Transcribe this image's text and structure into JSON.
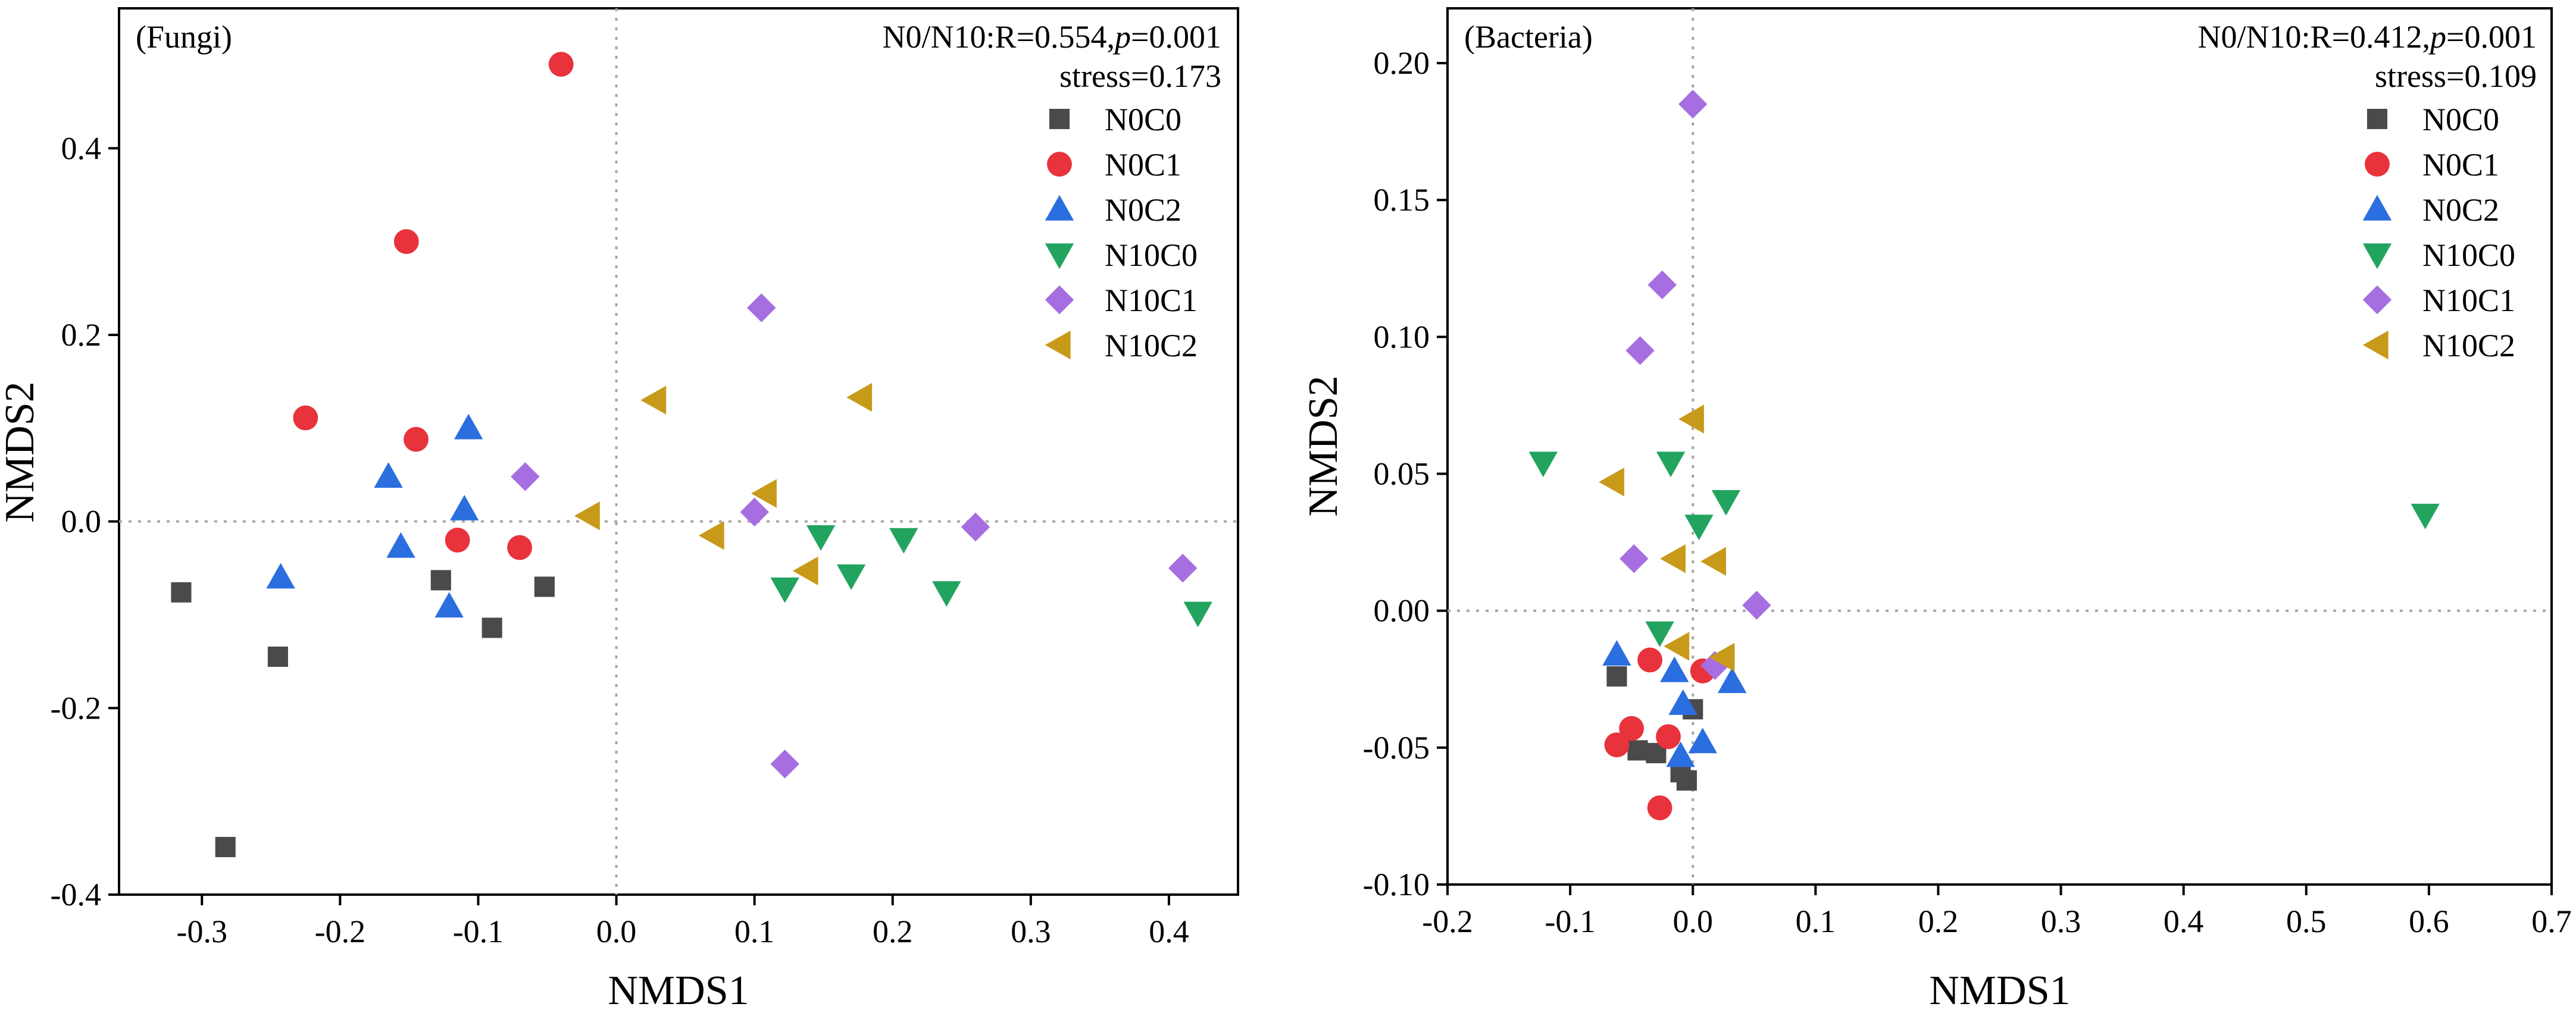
{
  "legend": [
    "N0C0",
    "N0C1",
    "N0C2",
    "N10C0",
    "N10C1",
    "N10C2"
  ],
  "series_style": {
    "N0C0": {
      "marker": "square",
      "color": "#4a4a4a"
    },
    "N0C1": {
      "marker": "circle",
      "color": "#e8323c"
    },
    "N0C2": {
      "marker": "triangle-up",
      "color": "#2b6ee0"
    },
    "N10C0": {
      "marker": "triangle-down",
      "color": "#22a45f"
    },
    "N10C1": {
      "marker": "diamond",
      "color": "#a66ee0"
    },
    "N10C2": {
      "marker": "triangle-left",
      "color": "#c89a1a"
    }
  },
  "chart_data": [
    {
      "type": "scatter",
      "panel_label": "(Fungi)",
      "stat_prefix": "N0/N10:R=0.554,",
      "stat_p_symbol": "p",
      "stat_p_value": "=0.001",
      "stress": "stress=0.173",
      "xlabel": "NMDS1",
      "ylabel": "NMDS2",
      "xlim": [
        -0.36,
        0.45
      ],
      "ylim": [
        -0.4,
        0.55
      ],
      "xticks": [
        -0.3,
        -0.2,
        -0.1,
        0.0,
        0.1,
        0.2,
        0.3,
        0.4
      ],
      "xtick_labels": [
        "-0.3",
        "-0.2",
        "-0.1",
        "0.0",
        "0.1",
        "0.2",
        "0.3",
        "0.4"
      ],
      "yticks": [
        -0.4,
        -0.2,
        0.0,
        0.2,
        0.4
      ],
      "ytick_labels": [
        "-0.4",
        "-0.2",
        "0.0",
        "0.2",
        "0.4"
      ],
      "series": [
        {
          "name": "N0C0",
          "points": [
            [
              -0.315,
              -0.076
            ],
            [
              -0.245,
              -0.145
            ],
            [
              -0.283,
              -0.349
            ],
            [
              -0.127,
              -0.063
            ],
            [
              -0.09,
              -0.114
            ],
            [
              -0.052,
              -0.07
            ]
          ]
        },
        {
          "name": "N0C1",
          "points": [
            [
              -0.04,
              0.49
            ],
            [
              -0.152,
              0.3
            ],
            [
              -0.225,
              0.111
            ],
            [
              -0.145,
              0.088
            ],
            [
              -0.115,
              -0.02
            ],
            [
              -0.07,
              -0.028
            ]
          ]
        },
        {
          "name": "N0C2",
          "points": [
            [
              -0.243,
              -0.06
            ],
            [
              -0.165,
              0.048
            ],
            [
              -0.156,
              -0.027
            ],
            [
              -0.107,
              0.1
            ],
            [
              -0.11,
              0.013
            ],
            [
              -0.121,
              -0.091
            ]
          ]
        },
        {
          "name": "N10C0",
          "points": [
            [
              0.148,
              -0.016
            ],
            [
              0.122,
              -0.072
            ],
            [
              0.17,
              -0.058
            ],
            [
              0.208,
              -0.019
            ],
            [
              0.239,
              -0.076
            ],
            [
              0.421,
              -0.098
            ]
          ]
        },
        {
          "name": "N10C1",
          "points": [
            [
              0.105,
              0.229
            ],
            [
              -0.066,
              0.048
            ],
            [
              0.1,
              0.01
            ],
            [
              0.26,
              -0.006
            ],
            [
              0.41,
              -0.05
            ],
            [
              0.122,
              -0.26
            ]
          ]
        },
        {
          "name": "N10C2",
          "points": [
            [
              0.028,
              0.13
            ],
            [
              0.177,
              0.133
            ],
            [
              -0.02,
              0.006
            ],
            [
              0.108,
              0.03
            ],
            [
              0.07,
              -0.015
            ],
            [
              0.138,
              -0.053
            ]
          ]
        }
      ]
    },
    {
      "type": "scatter",
      "panel_label": "(Bacteria)",
      "stat_prefix": "N0/N10:R=0.412,",
      "stat_p_symbol": "p",
      "stat_p_value": "=0.001",
      "stress": "stress=0.109",
      "xlabel": "NMDS1",
      "ylabel": "NMDS2",
      "xlim": [
        -0.2,
        0.7
      ],
      "ylim": [
        -0.1,
        0.22
      ],
      "xticks": [
        -0.2,
        -0.1,
        0.0,
        0.1,
        0.2,
        0.3,
        0.4,
        0.5,
        0.6,
        0.7
      ],
      "xtick_labels": [
        "-0.2",
        "-0.1",
        "0.0",
        "0.1",
        "0.2",
        "0.3",
        "0.4",
        "0.5",
        "0.6",
        "0.7"
      ],
      "yticks": [
        -0.1,
        -0.05,
        0.0,
        0.05,
        0.1,
        0.15,
        0.2
      ],
      "ytick_labels": [
        "-0.10",
        "-0.05",
        "0.00",
        "0.05",
        "0.10",
        "0.15",
        "0.20"
      ],
      "series": [
        {
          "name": "N0C0",
          "points": [
            [
              -0.062,
              -0.024
            ],
            [
              -0.045,
              -0.051
            ],
            [
              -0.03,
              -0.052
            ],
            [
              -0.01,
              -0.059
            ],
            [
              -0.005,
              -0.062
            ],
            [
              0.0,
              -0.036
            ]
          ]
        },
        {
          "name": "N0C1",
          "points": [
            [
              -0.035,
              -0.018
            ],
            [
              0.008,
              -0.022
            ],
            [
              -0.05,
              -0.043
            ],
            [
              -0.02,
              -0.046
            ],
            [
              -0.062,
              -0.049
            ],
            [
              -0.027,
              -0.072
            ]
          ]
        },
        {
          "name": "N0C2",
          "points": [
            [
              -0.062,
              -0.016
            ],
            [
              -0.015,
              -0.022
            ],
            [
              -0.008,
              -0.034
            ],
            [
              0.032,
              -0.026
            ],
            [
              0.008,
              -0.048
            ],
            [
              -0.01,
              -0.053
            ]
          ]
        },
        {
          "name": "N10C0",
          "points": [
            [
              -0.122,
              0.054
            ],
            [
              -0.018,
              0.054
            ],
            [
              0.027,
              0.04
            ],
            [
              0.005,
              0.031
            ],
            [
              -0.027,
              -0.008
            ],
            [
              0.597,
              0.035
            ]
          ]
        },
        {
          "name": "N10C1",
          "points": [
            [
              0.0,
              0.185
            ],
            [
              -0.025,
              0.119
            ],
            [
              -0.043,
              0.095
            ],
            [
              -0.048,
              0.019
            ],
            [
              0.052,
              0.002
            ],
            [
              0.018,
              -0.02
            ]
          ]
        },
        {
          "name": "N10C2",
          "points": [
            [
              0.0,
              0.07
            ],
            [
              -0.065,
              0.047
            ],
            [
              -0.015,
              0.019
            ],
            [
              0.018,
              0.018
            ],
            [
              -0.012,
              -0.013
            ],
            [
              0.025,
              -0.017
            ]
          ]
        }
      ]
    }
  ]
}
